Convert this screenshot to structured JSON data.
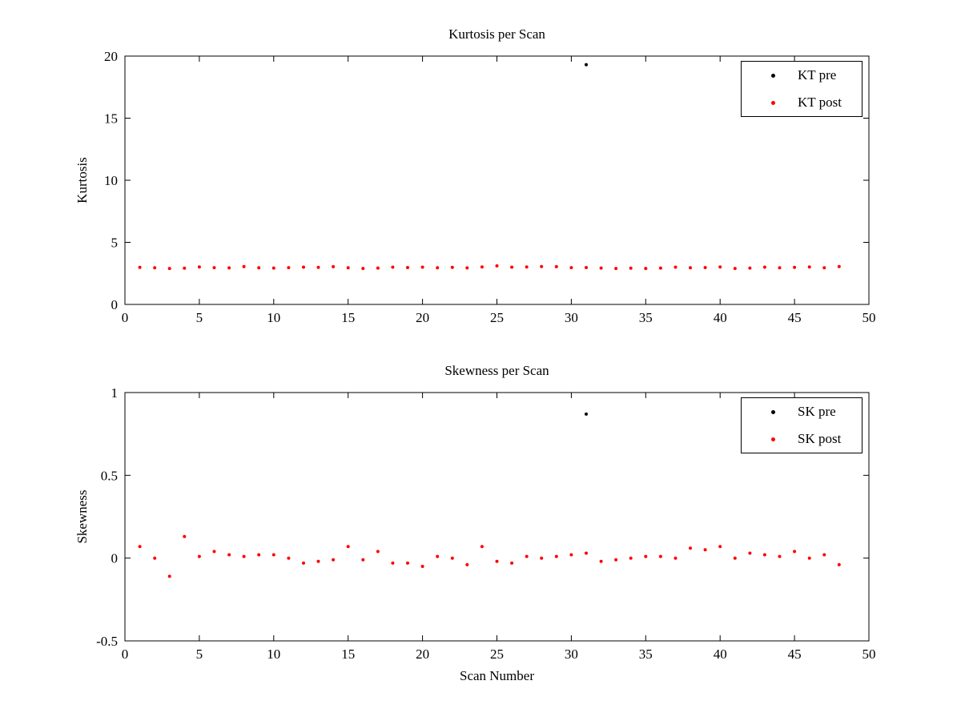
{
  "figure": {
    "background": "#ffffff",
    "axis_color": "#000000",
    "text_color": "#000000"
  },
  "chart_data": [
    {
      "type": "scatter",
      "title": "Kurtosis per Scan",
      "xlabel": "",
      "ylabel": "Kurtosis",
      "xlim": [
        0,
        50
      ],
      "ylim": [
        0,
        20
      ],
      "xticks": [
        0,
        5,
        10,
        15,
        20,
        25,
        30,
        35,
        40,
        45,
        50
      ],
      "yticks": [
        0,
        5,
        10,
        15,
        20
      ],
      "grid": false,
      "legend_position": "top-right",
      "series": [
        {
          "name": "KT pre",
          "color": "#000000",
          "marker": "dot",
          "x": [
            31
          ],
          "y": [
            19.3
          ]
        },
        {
          "name": "KT post",
          "color": "#ff0000",
          "marker": "dot",
          "x": [
            1,
            2,
            3,
            4,
            5,
            6,
            7,
            8,
            9,
            10,
            11,
            12,
            13,
            14,
            15,
            16,
            17,
            18,
            19,
            20,
            21,
            22,
            23,
            24,
            25,
            26,
            27,
            28,
            29,
            30,
            31,
            32,
            33,
            34,
            35,
            36,
            37,
            38,
            39,
            40,
            41,
            42,
            43,
            44,
            45,
            46,
            47,
            48
          ],
          "y": [
            2.98,
            2.95,
            2.9,
            2.92,
            3.02,
            2.96,
            2.94,
            3.05,
            2.95,
            2.93,
            2.96,
            3.0,
            2.98,
            3.04,
            2.95,
            2.9,
            2.93,
            3.0,
            2.97,
            3.0,
            2.95,
            2.98,
            2.94,
            3.02,
            3.1,
            3.0,
            3.02,
            3.05,
            3.04,
            2.96,
            2.97,
            2.93,
            2.9,
            2.92,
            2.9,
            2.93,
            3.0,
            2.95,
            2.97,
            3.02,
            2.9,
            2.93,
            3.0,
            2.95,
            2.98,
            3.02,
            2.95,
            3.05
          ]
        }
      ]
    },
    {
      "type": "scatter",
      "title": "Skewness per Scan",
      "xlabel": "Scan Number",
      "ylabel": "Skewness",
      "xlim": [
        0,
        50
      ],
      "ylim": [
        -0.5,
        1
      ],
      "xticks": [
        0,
        5,
        10,
        15,
        20,
        25,
        30,
        35,
        40,
        45,
        50
      ],
      "yticks": [
        -0.5,
        0,
        0.5,
        1
      ],
      "grid": false,
      "legend_position": "top-right",
      "series": [
        {
          "name": "SK pre",
          "color": "#000000",
          "marker": "dot",
          "x": [
            31
          ],
          "y": [
            0.87
          ]
        },
        {
          "name": "SK post",
          "color": "#ff0000",
          "marker": "dot",
          "x": [
            1,
            2,
            3,
            4,
            5,
            6,
            7,
            8,
            9,
            10,
            11,
            12,
            13,
            14,
            15,
            16,
            17,
            18,
            19,
            20,
            21,
            22,
            23,
            24,
            25,
            26,
            27,
            28,
            29,
            30,
            31,
            32,
            33,
            34,
            35,
            36,
            37,
            38,
            39,
            40,
            41,
            42,
            43,
            44,
            45,
            46,
            47,
            48
          ],
          "y": [
            0.07,
            0.0,
            -0.11,
            0.13,
            0.01,
            0.04,
            0.02,
            0.01,
            0.02,
            0.02,
            0.0,
            -0.03,
            -0.02,
            -0.01,
            0.07,
            -0.01,
            0.04,
            -0.03,
            -0.03,
            -0.05,
            0.01,
            0.0,
            -0.04,
            0.07,
            -0.02,
            -0.03,
            0.01,
            0.0,
            0.01,
            0.02,
            0.03,
            -0.02,
            -0.01,
            0.0,
            0.01,
            0.01,
            0.0,
            0.06,
            0.05,
            0.07,
            0.0,
            0.03,
            0.02,
            0.01,
            0.04,
            0.0,
            0.02,
            -0.04
          ]
        }
      ]
    }
  ]
}
